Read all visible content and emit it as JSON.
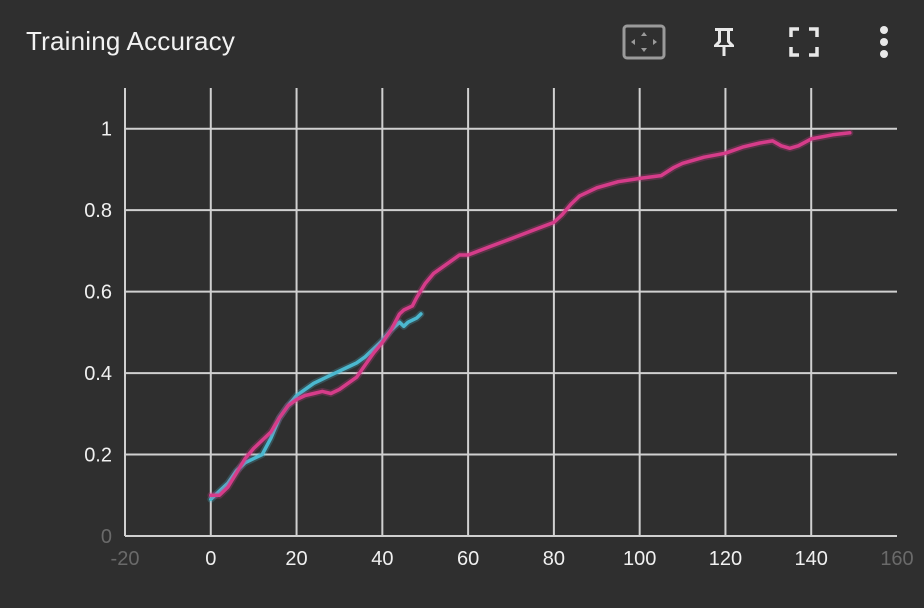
{
  "header": {
    "title": "Training Accuracy",
    "tools": [
      {
        "name": "fit-domain-icon"
      },
      {
        "name": "pin-icon"
      },
      {
        "name": "fullscreen-icon"
      },
      {
        "name": "more-vert-icon"
      }
    ]
  },
  "colors": {
    "background": "#2f2f2f",
    "grid": "#d0d0d0",
    "series_magenta": "#d63c8a",
    "series_cyan": "#4bb8cf"
  },
  "chart_data": {
    "type": "line",
    "title": "",
    "xlabel": "",
    "ylabel": "",
    "xlim": [
      -20,
      160
    ],
    "ylim": [
      0,
      1.1
    ],
    "grid": true,
    "x_ticks": [
      {
        "value": -20,
        "label": "-20",
        "faded": true
      },
      {
        "value": 0,
        "label": "0"
      },
      {
        "value": 20,
        "label": "20"
      },
      {
        "value": 40,
        "label": "40"
      },
      {
        "value": 60,
        "label": "60"
      },
      {
        "value": 80,
        "label": "80"
      },
      {
        "value": 100,
        "label": "100"
      },
      {
        "value": 120,
        "label": "120"
      },
      {
        "value": 140,
        "label": "140"
      },
      {
        "value": 160,
        "label": "160",
        "faded": true
      }
    ],
    "y_ticks": [
      {
        "value": 0,
        "label": "0",
        "faded": true
      },
      {
        "value": 0.2,
        "label": "0.2"
      },
      {
        "value": 0.4,
        "label": "0.4"
      },
      {
        "value": 0.6,
        "label": "0.6"
      },
      {
        "value": 0.8,
        "label": "0.8"
      },
      {
        "value": 1,
        "label": "1"
      }
    ],
    "series": [
      {
        "color": "#4bb8cf",
        "x": [
          0,
          2,
          4,
          6,
          8,
          10,
          12,
          14,
          16,
          18,
          20,
          22,
          24,
          26,
          28,
          30,
          32,
          34,
          36,
          38,
          40,
          42,
          44,
          45,
          46,
          48,
          49
        ],
        "y": [
          0.09,
          0.11,
          0.13,
          0.16,
          0.18,
          0.19,
          0.2,
          0.24,
          0.29,
          0.32,
          0.345,
          0.36,
          0.375,
          0.385,
          0.395,
          0.405,
          0.415,
          0.425,
          0.44,
          0.46,
          0.48,
          0.505,
          0.525,
          0.515,
          0.525,
          0.535,
          0.545
        ]
      },
      {
        "color": "#d63c8a",
        "x": [
          0,
          2,
          4,
          6,
          8,
          10,
          12,
          14,
          16,
          18,
          20,
          22,
          24,
          26,
          28,
          30,
          32,
          34,
          36,
          38,
          40,
          42,
          44,
          45,
          47,
          48,
          50,
          52,
          54,
          56,
          58,
          60,
          65,
          70,
          75,
          80,
          82,
          84,
          86,
          90,
          95,
          100,
          105,
          108,
          110,
          115,
          120,
          124,
          128,
          131,
          133,
          135,
          137,
          140,
          145,
          149
        ],
        "y": [
          0.1,
          0.1,
          0.12,
          0.155,
          0.19,
          0.215,
          0.235,
          0.255,
          0.29,
          0.32,
          0.335,
          0.345,
          0.35,
          0.355,
          0.35,
          0.36,
          0.375,
          0.39,
          0.42,
          0.45,
          0.475,
          0.505,
          0.545,
          0.555,
          0.565,
          0.585,
          0.62,
          0.645,
          0.66,
          0.675,
          0.69,
          0.69,
          0.71,
          0.73,
          0.75,
          0.77,
          0.79,
          0.815,
          0.835,
          0.855,
          0.87,
          0.878,
          0.885,
          0.905,
          0.915,
          0.93,
          0.94,
          0.955,
          0.965,
          0.97,
          0.958,
          0.952,
          0.958,
          0.975,
          0.985,
          0.99
        ]
      }
    ]
  }
}
